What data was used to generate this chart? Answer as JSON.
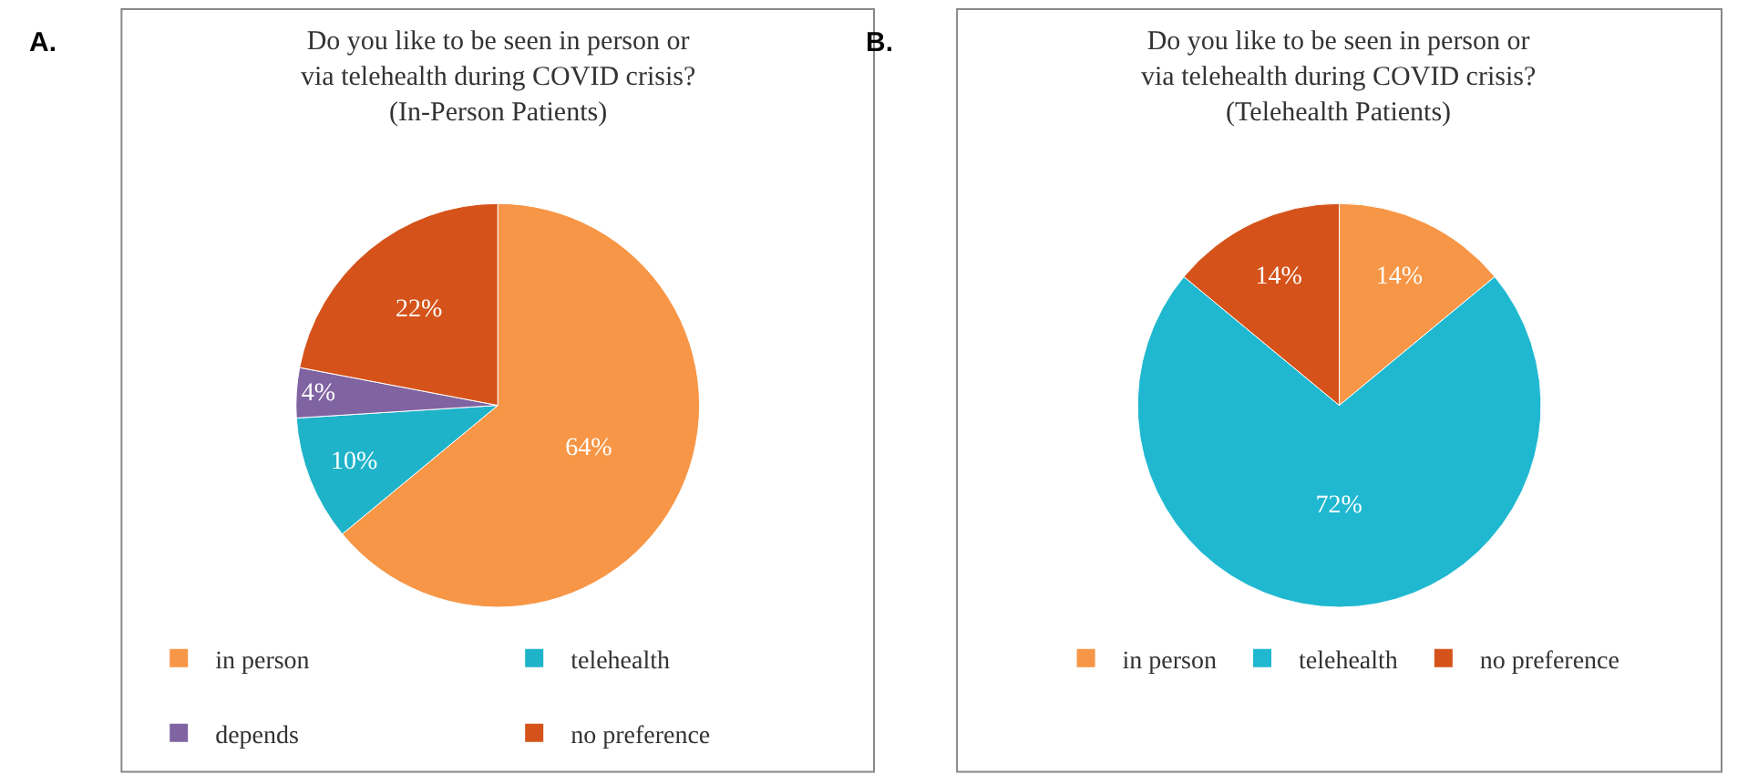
{
  "chart_data": [
    {
      "type": "pie",
      "title": "Do you like to be seen in person or\nvia telehealth during COVID crisis?\n(In-Person Patients)",
      "annotations": [
        "A."
      ],
      "categories": [
        "in person",
        "telehealth",
        "depends",
        "no preference"
      ],
      "values": [
        64,
        10,
        4,
        22
      ],
      "colors": [
        "#f79646",
        "#1fb3c9",
        "#8064a2",
        "#d5531a"
      ],
      "value_labels": [
        "64%",
        "10%",
        "4%",
        "22%"
      ],
      "legend": "bottom"
    },
    {
      "type": "pie",
      "title": "Do you like to be seen in person or\nvia telehealth during COVID crisis?\n(Telehealth Patients)",
      "annotations": [
        "B."
      ],
      "categories": [
        "in person",
        "telehealth",
        "no preference"
      ],
      "values": [
        14,
        72,
        14
      ],
      "colors": [
        "#f79646",
        "#1fb8d0",
        "#d5531a"
      ],
      "value_labels": [
        "14%",
        "72%",
        "14%"
      ],
      "legend": "bottom"
    }
  ]
}
